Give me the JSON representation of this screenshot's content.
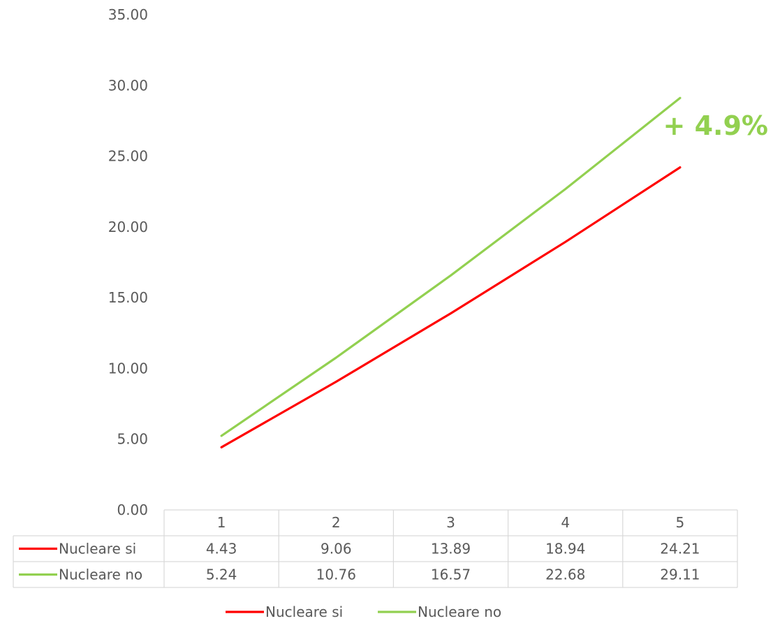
{
  "chart_data": {
    "type": "line",
    "x": [
      "1",
      "2",
      "3",
      "4",
      "5"
    ],
    "categories": [
      "1",
      "2",
      "3",
      "4",
      "5"
    ],
    "series": [
      {
        "name": "Nucleare si",
        "values": [
          4.43,
          9.06,
          13.89,
          18.94,
          24.21
        ],
        "display": [
          "4.43",
          "9.06",
          "13.89",
          "18.94",
          "24.21"
        ],
        "color": "#ff0000"
      },
      {
        "name": "Nucleare no",
        "values": [
          5.24,
          10.76,
          16.57,
          22.68,
          29.11
        ],
        "display": [
          "5.24",
          "10.76",
          "16.57",
          "22.68",
          "29.11"
        ],
        "color": "#92d050"
      }
    ],
    "ylim": [
      0,
      35
    ],
    "yticks": [
      "0.00",
      "5.00",
      "10.00",
      "15.00",
      "20.00",
      "25.00",
      "30.00",
      "35.00"
    ],
    "ytick_values": [
      0,
      5,
      10,
      15,
      20,
      25,
      30,
      35
    ],
    "grid": false,
    "data_table": true,
    "legend_position": "bottom",
    "annotation": {
      "text": "+ 4.9%",
      "color": "#92d050"
    },
    "title": "",
    "xlabel": "",
    "ylabel": ""
  }
}
